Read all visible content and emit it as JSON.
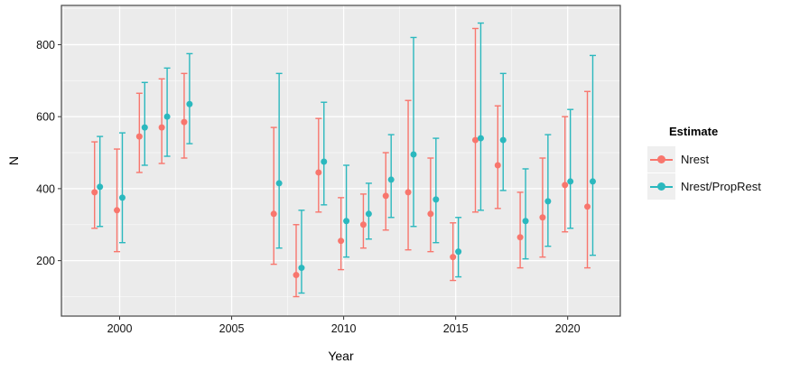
{
  "chart_data": {
    "type": "pointrange",
    "title": "",
    "xlabel": "Year",
    "ylabel": "N",
    "legend_title": "Estimate",
    "legend_position": "right",
    "grid": true,
    "xlim": [
      1997.4,
      2022.35
    ],
    "ylim": [
      46,
      909
    ],
    "x_ticks": [
      2000,
      2005,
      2010,
      2015,
      2020
    ],
    "y_ticks": [
      200,
      400,
      600,
      800
    ],
    "x_minor": [
      1997.5,
      2002.5,
      2007.5,
      2012.5,
      2017.5
    ],
    "y_minor": [
      100,
      300,
      500,
      700,
      900
    ],
    "dodge": 0.12,
    "colors": {
      "panel_bg": "#EBEBEB",
      "panel_border": "#474747",
      "grid_major": "#FFFFFF",
      "tick": "#333333"
    },
    "series": [
      {
        "name": "Nrest",
        "color": "#F8766D",
        "points": [
          {
            "year": 1999,
            "y": 390,
            "lo": 290,
            "hi": 530
          },
          {
            "year": 2000,
            "y": 340,
            "lo": 225,
            "hi": 510
          },
          {
            "year": 2001,
            "y": 545,
            "lo": 445,
            "hi": 665
          },
          {
            "year": 2002,
            "y": 570,
            "lo": 470,
            "hi": 705
          },
          {
            "year": 2003,
            "y": 585,
            "lo": 485,
            "hi": 720
          },
          {
            "year": 2007,
            "y": 330,
            "lo": 190,
            "hi": 570
          },
          {
            "year": 2008,
            "y": 160,
            "lo": 100,
            "hi": 300
          },
          {
            "year": 2009,
            "y": 445,
            "lo": 335,
            "hi": 595
          },
          {
            "year": 2010,
            "y": 255,
            "lo": 175,
            "hi": 375
          },
          {
            "year": 2011,
            "y": 300,
            "lo": 235,
            "hi": 385
          },
          {
            "year": 2012,
            "y": 380,
            "lo": 285,
            "hi": 500
          },
          {
            "year": 2013,
            "y": 390,
            "lo": 230,
            "hi": 645
          },
          {
            "year": 2014,
            "y": 330,
            "lo": 225,
            "hi": 485
          },
          {
            "year": 2015,
            "y": 210,
            "lo": 145,
            "hi": 305
          },
          {
            "year": 2016,
            "y": 535,
            "lo": 335,
            "hi": 845
          },
          {
            "year": 2017,
            "y": 465,
            "lo": 345,
            "hi": 630
          },
          {
            "year": 2018,
            "y": 265,
            "lo": 180,
            "hi": 390
          },
          {
            "year": 2019,
            "y": 320,
            "lo": 210,
            "hi": 485
          },
          {
            "year": 2020,
            "y": 410,
            "lo": 280,
            "hi": 600
          },
          {
            "year": 2021,
            "y": 350,
            "lo": 180,
            "hi": 670
          }
        ]
      },
      {
        "name": "Nrest/PropRest",
        "color": "#2BB8BE",
        "points": [
          {
            "year": 1999,
            "y": 405,
            "lo": 295,
            "hi": 545
          },
          {
            "year": 2000,
            "y": 375,
            "lo": 250,
            "hi": 555
          },
          {
            "year": 2001,
            "y": 570,
            "lo": 465,
            "hi": 695
          },
          {
            "year": 2002,
            "y": 600,
            "lo": 490,
            "hi": 735
          },
          {
            "year": 2003,
            "y": 635,
            "lo": 525,
            "hi": 775
          },
          {
            "year": 2007,
            "y": 415,
            "lo": 235,
            "hi": 720
          },
          {
            "year": 2008,
            "y": 180,
            "lo": 110,
            "hi": 340
          },
          {
            "year": 2009,
            "y": 475,
            "lo": 355,
            "hi": 640
          },
          {
            "year": 2010,
            "y": 310,
            "lo": 210,
            "hi": 465
          },
          {
            "year": 2011,
            "y": 330,
            "lo": 260,
            "hi": 415
          },
          {
            "year": 2012,
            "y": 425,
            "lo": 320,
            "hi": 550
          },
          {
            "year": 2013,
            "y": 495,
            "lo": 295,
            "hi": 820
          },
          {
            "year": 2014,
            "y": 370,
            "lo": 250,
            "hi": 540
          },
          {
            "year": 2015,
            "y": 225,
            "lo": 155,
            "hi": 320
          },
          {
            "year": 2016,
            "y": 540,
            "lo": 340,
            "hi": 860
          },
          {
            "year": 2017,
            "y": 535,
            "lo": 395,
            "hi": 720
          },
          {
            "year": 2018,
            "y": 310,
            "lo": 205,
            "hi": 455
          },
          {
            "year": 2019,
            "y": 365,
            "lo": 240,
            "hi": 550
          },
          {
            "year": 2020,
            "y": 420,
            "lo": 290,
            "hi": 620
          },
          {
            "year": 2021,
            "y": 420,
            "lo": 215,
            "hi": 770
          }
        ]
      }
    ]
  }
}
